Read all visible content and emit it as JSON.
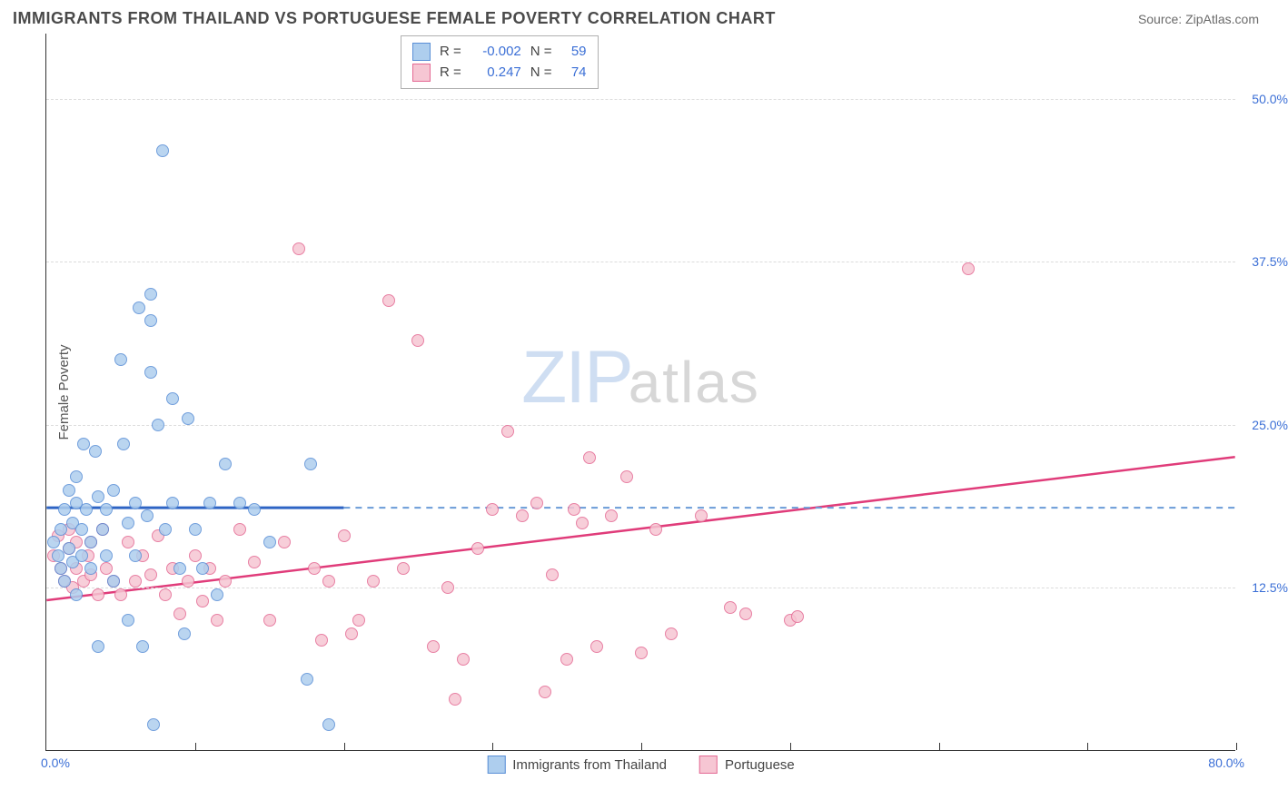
{
  "header": {
    "title": "IMMIGRANTS FROM THAILAND VS PORTUGUESE FEMALE POVERTY CORRELATION CHART",
    "source": "Source: ZipAtlas.com"
  },
  "watermark": {
    "part1": "ZIP",
    "part2": "atlas"
  },
  "y_axis": {
    "title": "Female Poverty",
    "ticks": [
      {
        "value": 50.0,
        "label": "50.0%"
      },
      {
        "value": 37.5,
        "label": "37.5%"
      },
      {
        "value": 25.0,
        "label": "25.0%"
      },
      {
        "value": 12.5,
        "label": "12.5%"
      }
    ],
    "min": 0,
    "max": 55,
    "gridline_color": "#dcdcdc"
  },
  "x_axis": {
    "start_label": "0.0%",
    "end_label": "80.0%",
    "min": 0,
    "max": 80,
    "tick_count": 9
  },
  "series": {
    "blue": {
      "label": "Immigrants from Thailand",
      "fill": "#aeceee",
      "stroke": "#5a8fd6",
      "R": "-0.002",
      "N": "59",
      "trend": {
        "y_start": 18.6,
        "y_end": 18.6,
        "x_solid_end": 20,
        "line_color": "#2e64c4",
        "dash_color": "#6a9bd8"
      },
      "points": [
        [
          0.5,
          16
        ],
        [
          0.8,
          15
        ],
        [
          1.0,
          14
        ],
        [
          1.0,
          17
        ],
        [
          1.2,
          18.5
        ],
        [
          1.2,
          13
        ],
        [
          1.5,
          20
        ],
        [
          1.5,
          15.5
        ],
        [
          1.8,
          14.5
        ],
        [
          1.8,
          17.5
        ],
        [
          2.0,
          19
        ],
        [
          2.0,
          21
        ],
        [
          2.0,
          12
        ],
        [
          2.4,
          17
        ],
        [
          2.4,
          15
        ],
        [
          2.5,
          23.5
        ],
        [
          2.7,
          18.5
        ],
        [
          3.0,
          16
        ],
        [
          3.0,
          14
        ],
        [
          3.3,
          23
        ],
        [
          3.5,
          19.5
        ],
        [
          3.5,
          8
        ],
        [
          3.8,
          17
        ],
        [
          4.0,
          15
        ],
        [
          4.0,
          18.5
        ],
        [
          4.5,
          20
        ],
        [
          4.5,
          13
        ],
        [
          5.0,
          30
        ],
        [
          5.2,
          23.5
        ],
        [
          5.5,
          17.5
        ],
        [
          5.5,
          10
        ],
        [
          6.0,
          15
        ],
        [
          6.0,
          19
        ],
        [
          6.2,
          34
        ],
        [
          6.5,
          8
        ],
        [
          6.8,
          18
        ],
        [
          7.0,
          35
        ],
        [
          7.0,
          33
        ],
        [
          7.0,
          29
        ],
        [
          7.5,
          25
        ],
        [
          7.8,
          46
        ],
        [
          8.0,
          17
        ],
        [
          8.5,
          19
        ],
        [
          8.5,
          27
        ],
        [
          9.0,
          14
        ],
        [
          9.3,
          9
        ],
        [
          9.5,
          25.5
        ],
        [
          10,
          17
        ],
        [
          10.5,
          14
        ],
        [
          11,
          19
        ],
        [
          11.5,
          12
        ],
        [
          12,
          22
        ],
        [
          13,
          19
        ],
        [
          14,
          18.5
        ],
        [
          15,
          16
        ],
        [
          17.5,
          5.5
        ],
        [
          17.8,
          22
        ],
        [
          19,
          2
        ],
        [
          7.2,
          2
        ]
      ]
    },
    "pink": {
      "label": "Portuguese",
      "fill": "#f6c6d3",
      "stroke": "#e46a94",
      "R": "0.247",
      "N": "74",
      "trend": {
        "y_start": 11.5,
        "y_end": 22.5,
        "x_solid_end": 80,
        "line_color": "#e03c7a",
        "dash_color": "#e03c7a"
      },
      "points": [
        [
          0.5,
          15
        ],
        [
          0.8,
          16.5
        ],
        [
          1.0,
          14
        ],
        [
          1.2,
          13
        ],
        [
          1.5,
          15.5
        ],
        [
          1.5,
          17
        ],
        [
          1.8,
          12.5
        ],
        [
          2.0,
          14
        ],
        [
          2.0,
          16
        ],
        [
          2.5,
          13
        ],
        [
          2.8,
          15
        ],
        [
          3.0,
          13.5
        ],
        [
          3.0,
          16
        ],
        [
          3.5,
          12
        ],
        [
          3.8,
          17
        ],
        [
          4.0,
          14
        ],
        [
          4.5,
          13
        ],
        [
          5.0,
          12
        ],
        [
          5.5,
          16
        ],
        [
          6.0,
          13
        ],
        [
          6.5,
          15
        ],
        [
          7.0,
          13.5
        ],
        [
          7.5,
          16.5
        ],
        [
          8.0,
          12
        ],
        [
          8.5,
          14
        ],
        [
          9.0,
          10.5
        ],
        [
          9.5,
          13
        ],
        [
          10,
          15
        ],
        [
          10.5,
          11.5
        ],
        [
          11,
          14
        ],
        [
          11.5,
          10
        ],
        [
          12,
          13
        ],
        [
          13,
          17
        ],
        [
          14,
          14.5
        ],
        [
          15,
          10
        ],
        [
          16,
          16
        ],
        [
          17,
          38.5
        ],
        [
          18,
          14
        ],
        [
          18.5,
          8.5
        ],
        [
          19,
          13
        ],
        [
          20,
          16.5
        ],
        [
          20.5,
          9
        ],
        [
          21,
          10
        ],
        [
          22,
          13
        ],
        [
          23,
          34.5
        ],
        [
          24,
          14
        ],
        [
          25,
          31.5
        ],
        [
          26,
          8
        ],
        [
          27,
          12.5
        ],
        [
          27.5,
          4
        ],
        [
          28,
          7
        ],
        [
          29,
          15.5
        ],
        [
          30,
          18.5
        ],
        [
          31,
          24.5
        ],
        [
          32,
          18
        ],
        [
          33,
          19
        ],
        [
          33.5,
          4.5
        ],
        [
          34,
          13.5
        ],
        [
          35,
          7
        ],
        [
          36,
          17.5
        ],
        [
          36.5,
          22.5
        ],
        [
          37,
          8
        ],
        [
          38,
          18
        ],
        [
          39,
          21
        ],
        [
          40,
          7.5
        ],
        [
          41,
          17
        ],
        [
          42,
          9
        ],
        [
          44,
          18
        ],
        [
          46,
          11
        ],
        [
          47,
          10.5
        ],
        [
          50,
          10
        ],
        [
          50.5,
          10.3
        ],
        [
          62,
          37
        ],
        [
          35.5,
          18.5
        ]
      ]
    }
  },
  "legend_labels": {
    "R": "R =",
    "N": "N ="
  },
  "style": {
    "point_radius": 7,
    "background": "#ffffff",
    "axis_color": "#333333",
    "axis_label_color": "#3b6fd6",
    "title_fontsize": 18,
    "source_fontsize": 14
  }
}
